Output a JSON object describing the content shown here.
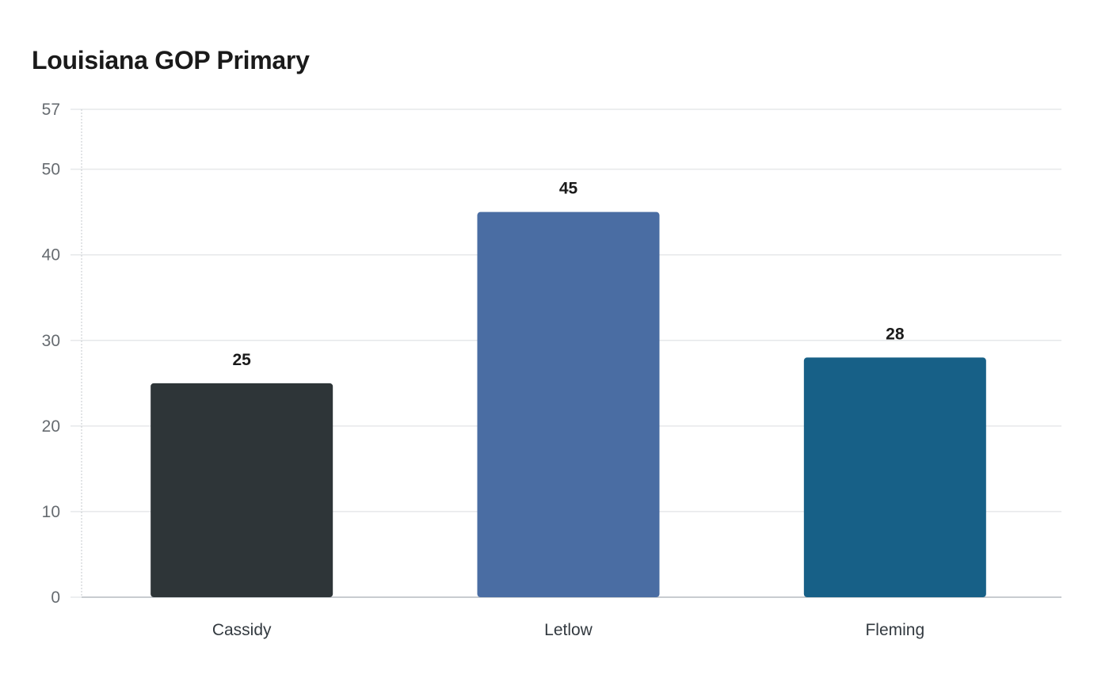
{
  "chart_data": {
    "type": "bar",
    "title": "Louisiana GOP Primary",
    "xlabel": "",
    "ylabel": "",
    "categories": [
      "Cassidy",
      "Letlow",
      "Fleming"
    ],
    "values": [
      25,
      45,
      28
    ],
    "colors": [
      "#2e3538",
      "#4a6da3",
      "#176087"
    ],
    "ylim": [
      0,
      57
    ],
    "yticks": [
      0,
      10,
      20,
      30,
      40,
      50,
      57
    ],
    "grid": true,
    "legend": "none"
  }
}
